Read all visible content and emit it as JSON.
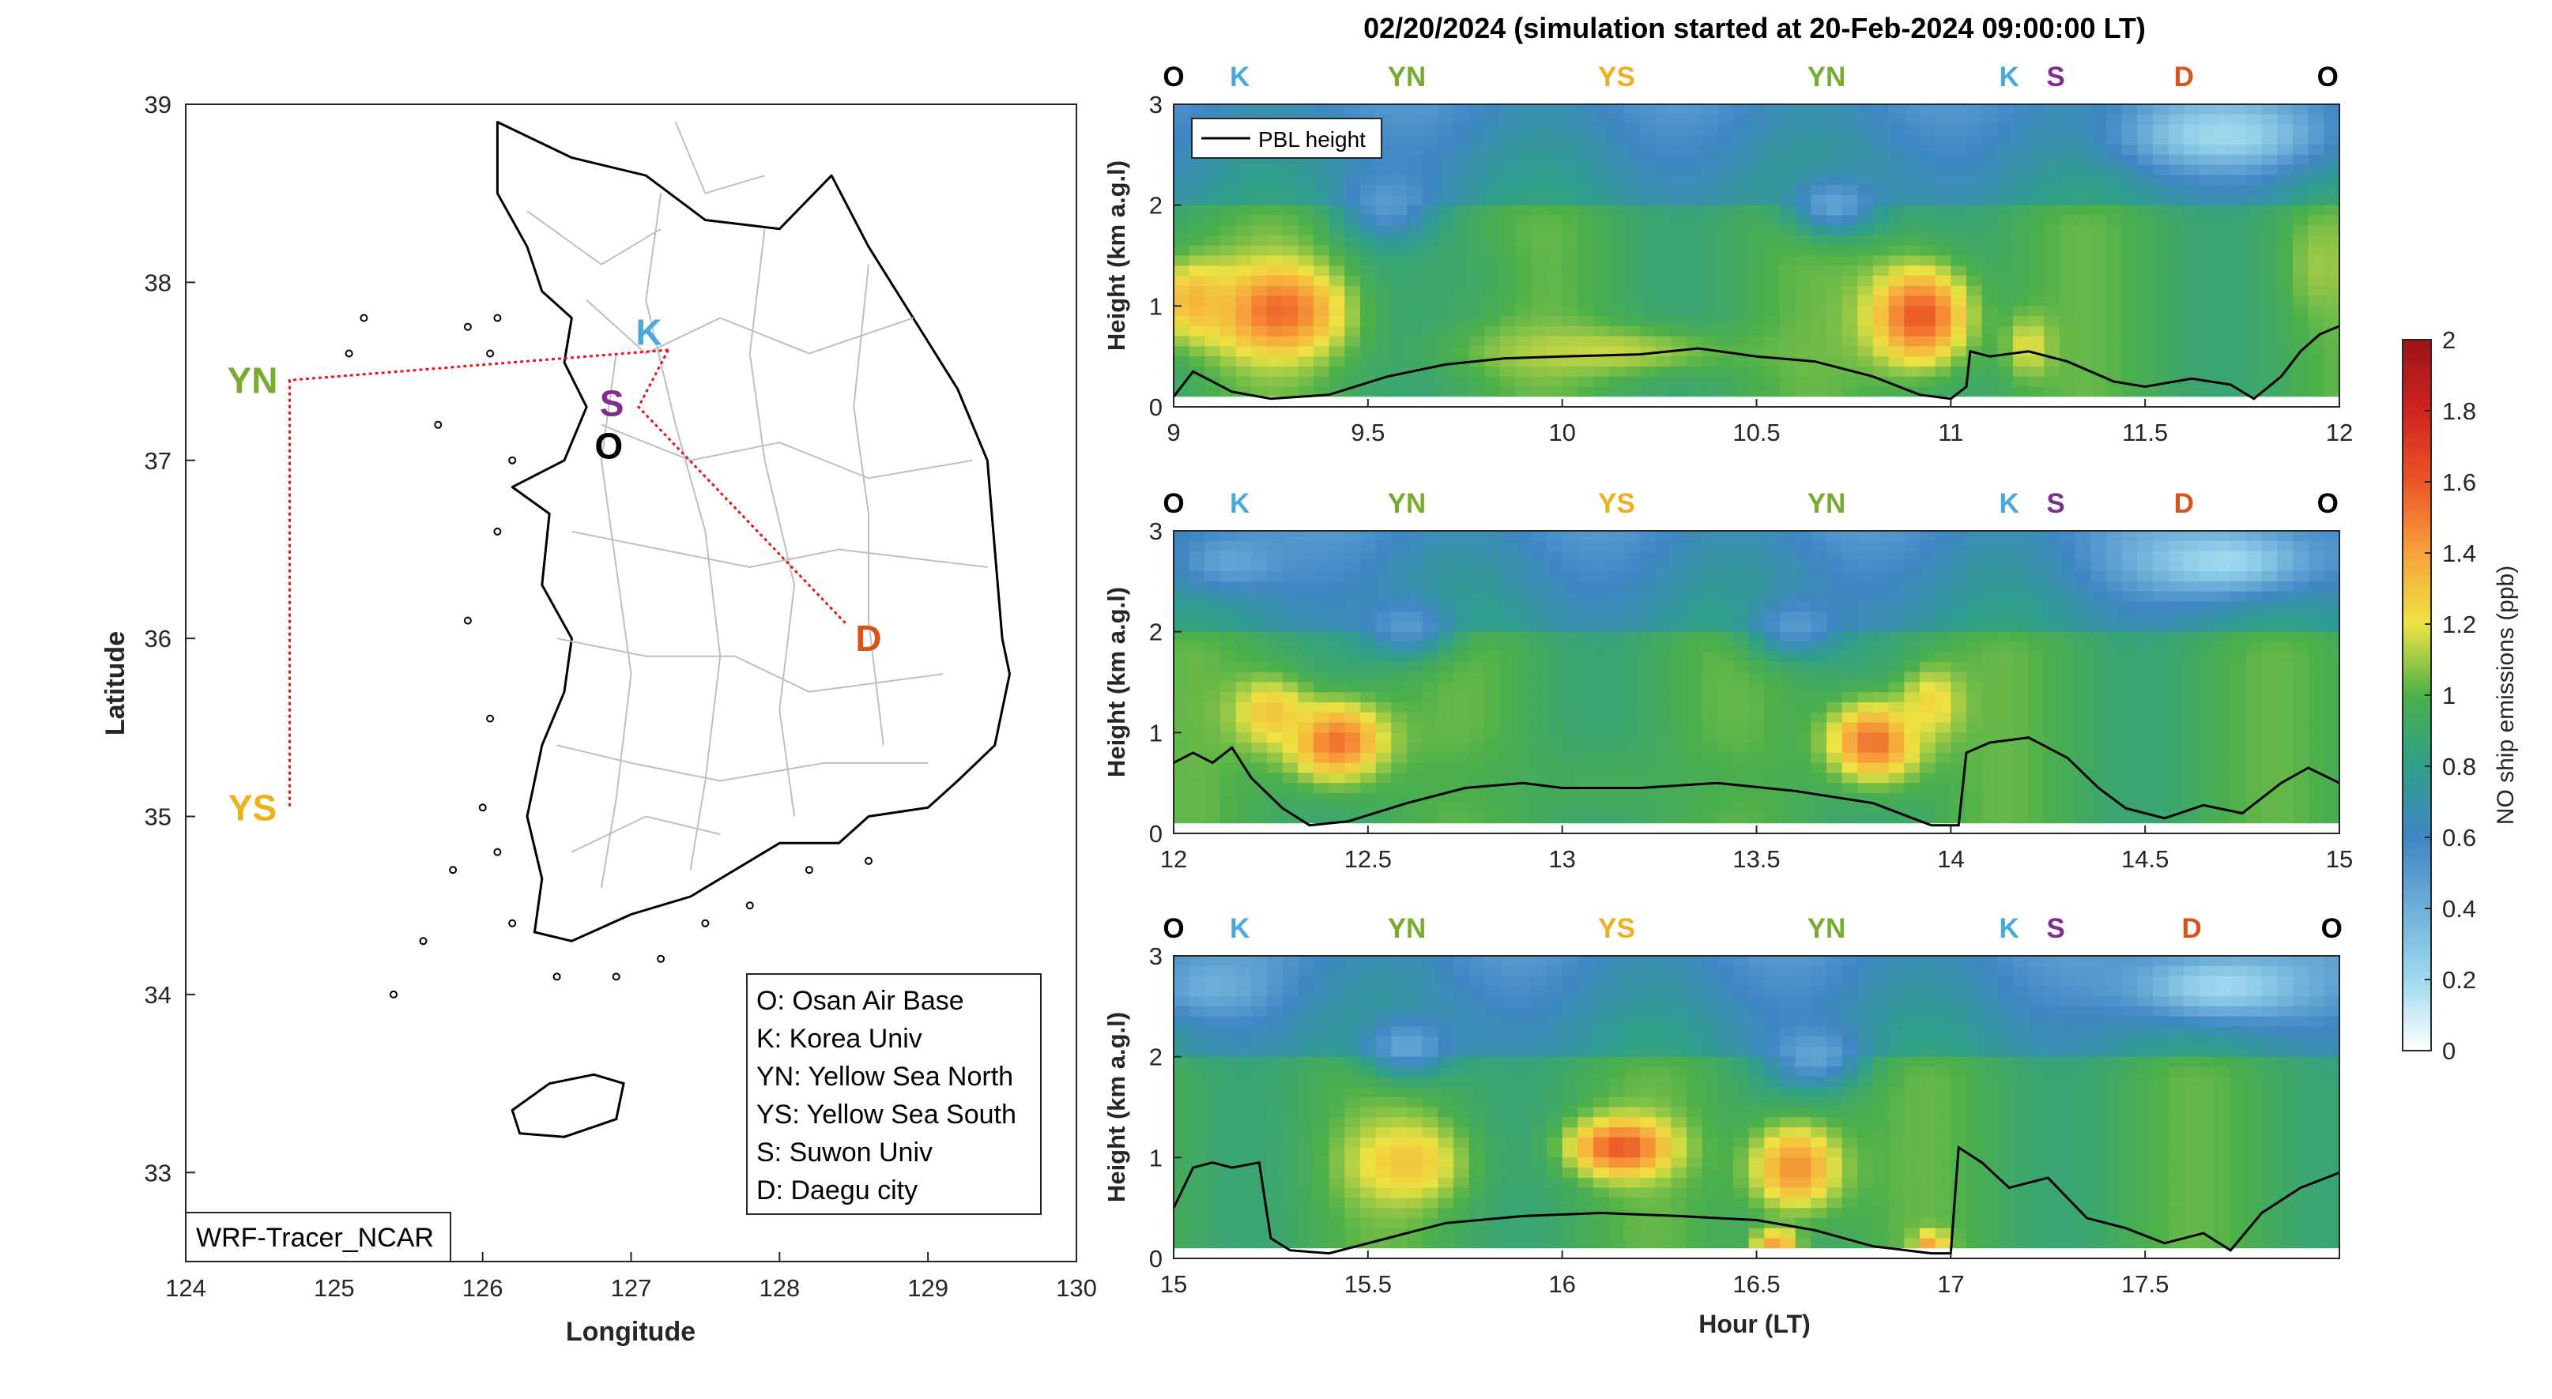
{
  "map": {
    "xlabel": "Longitude",
    "ylabel": "Latitude",
    "xlim": [
      124,
      130
    ],
    "ylim": [
      32.5,
      39
    ],
    "xticks": [
      "124",
      "125",
      "126",
      "127",
      "128",
      "129",
      "130"
    ],
    "yticks": [
      "33",
      "34",
      "35",
      "36",
      "37",
      "38",
      "39"
    ],
    "model_label": "WRF-Tracer_NCAR",
    "sites": [
      {
        "code": "O",
        "lon": 126.95,
        "lat": 37.05,
        "label_lon": 126.85,
        "label_lat": 37.08,
        "color": "#000000"
      },
      {
        "code": "K",
        "lon": 127.25,
        "lat": 37.62,
        "label_lon": 127.12,
        "label_lat": 37.72,
        "color": "#4aa8db"
      },
      {
        "code": "S",
        "lon": 127.05,
        "lat": 37.3,
        "label_lon": 126.87,
        "label_lat": 37.32,
        "color": "#7e2f8e"
      },
      {
        "code": "YN",
        "lon": 124.7,
        "lat": 37.45,
        "label_lon": 124.45,
        "label_lat": 37.45,
        "color": "#77ac30"
      },
      {
        "code": "YS",
        "lon": 124.7,
        "lat": 35.05,
        "label_lon": 124.45,
        "label_lat": 35.05,
        "color": "#edb120"
      },
      {
        "code": "D",
        "lon": 128.45,
        "lat": 36.08,
        "label_lon": 128.6,
        "label_lat": 36.0,
        "color": "#d95319"
      }
    ],
    "route": [
      {
        "lon": 127.25,
        "lat": 37.62
      },
      {
        "lon": 124.7,
        "lat": 37.45
      },
      {
        "lon": 124.7,
        "lat": 35.05
      }
    ],
    "route2": [
      {
        "lon": 127.25,
        "lat": 37.62
      },
      {
        "lon": 127.05,
        "lat": 37.3
      },
      {
        "lon": 128.45,
        "lat": 36.08
      }
    ],
    "legend": [
      "O: Osan Air Base",
      "K: Korea Univ",
      "YN: Yellow Sea North",
      "YS: Yellow Sea South",
      "S: Suwon Univ",
      "D: Daegu city"
    ]
  },
  "chart_data": {
    "type": "heatmap",
    "title": "02/20/2024 (simulation started at 20-Feb-2024 09:00:00 LT)",
    "xlabel": "Hour (LT)",
    "ylabel": "Height (km a.g.l)",
    "ylim": [
      0,
      3
    ],
    "yticks": [
      "0",
      "1",
      "2",
      "3"
    ],
    "legend_entry": "PBL height",
    "colorbar": {
      "label": "NO ship emissions (ppb)",
      "range": [
        0,
        2
      ],
      "ticks": [
        "0",
        "0.2",
        "0.4",
        "0.6",
        "0.8",
        "1",
        "1.2",
        "1.4",
        "1.6",
        "1.8",
        "2"
      ]
    },
    "panels": [
      {
        "xlim": [
          9,
          12
        ],
        "xticks": [
          "9",
          "9.5",
          "10",
          "10.5",
          "11",
          "11.5",
          "12"
        ],
        "site_labels": [
          {
            "code": "O",
            "t": 9.0,
            "color": "#000000"
          },
          {
            "code": "K",
            "t": 9.17,
            "color": "#4aa8db"
          },
          {
            "code": "YN",
            "t": 9.6,
            "color": "#77ac30"
          },
          {
            "code": "YS",
            "t": 10.14,
            "color": "#edb120"
          },
          {
            "code": "YN",
            "t": 10.68,
            "color": "#77ac30"
          },
          {
            "code": "K",
            "t": 11.15,
            "color": "#4aa8db"
          },
          {
            "code": "S",
            "t": 11.27,
            "color": "#7e2f8e"
          },
          {
            "code": "D",
            "t": 11.6,
            "color": "#d95319"
          },
          {
            "code": "O",
            "t": 11.97,
            "color": "#000000"
          }
        ],
        "pbl": [
          [
            9.0,
            0.1
          ],
          [
            9.05,
            0.35
          ],
          [
            9.1,
            0.25
          ],
          [
            9.15,
            0.15
          ],
          [
            9.25,
            0.08
          ],
          [
            9.4,
            0.12
          ],
          [
            9.55,
            0.3
          ],
          [
            9.7,
            0.42
          ],
          [
            9.85,
            0.48
          ],
          [
            10.0,
            0.5
          ],
          [
            10.2,
            0.52
          ],
          [
            10.35,
            0.58
          ],
          [
            10.5,
            0.5
          ],
          [
            10.65,
            0.45
          ],
          [
            10.8,
            0.3
          ],
          [
            10.92,
            0.12
          ],
          [
            11.0,
            0.08
          ],
          [
            11.04,
            0.2
          ],
          [
            11.05,
            0.55
          ],
          [
            11.1,
            0.5
          ],
          [
            11.2,
            0.55
          ],
          [
            11.3,
            0.45
          ],
          [
            11.42,
            0.25
          ],
          [
            11.5,
            0.2
          ],
          [
            11.62,
            0.28
          ],
          [
            11.72,
            0.22
          ],
          [
            11.78,
            0.08
          ],
          [
            11.85,
            0.3
          ],
          [
            11.9,
            0.55
          ],
          [
            11.95,
            0.72
          ],
          [
            12.0,
            0.8
          ]
        ],
        "blobs": [
          {
            "t": 9.27,
            "h": 0.95,
            "v": 1.55,
            "sx": 0.17,
            "sy": 0.45
          },
          {
            "t": 9.05,
            "h": 1.05,
            "v": 1.35,
            "sx": 0.1,
            "sy": 0.4
          },
          {
            "t": 10.92,
            "h": 0.9,
            "v": 1.6,
            "sx": 0.13,
            "sy": 0.5
          },
          {
            "t": 10.1,
            "h": 0.55,
            "v": 1.15,
            "sx": 0.35,
            "sy": 0.25
          },
          {
            "t": 9.7,
            "h": 1.3,
            "v": 0.9,
            "sx": 0.15,
            "sy": 0.35
          },
          {
            "t": 11.2,
            "h": 0.6,
            "v": 1.2,
            "sx": 0.06,
            "sy": 0.3
          },
          {
            "t": 9.55,
            "h": 2.0,
            "v": 0.5,
            "sx": 0.12,
            "sy": 0.35
          },
          {
            "t": 10.7,
            "h": 2.0,
            "v": 0.45,
            "sx": 0.12,
            "sy": 0.3
          },
          {
            "t": 11.7,
            "h": 2.7,
            "v": 0.2,
            "sx": 0.25,
            "sy": 0.35
          },
          {
            "t": 11.95,
            "h": 1.4,
            "v": 1.1,
            "sx": 0.08,
            "sy": 0.5
          }
        ]
      },
      {
        "xlim": [
          12,
          15
        ],
        "xticks": [
          "12",
          "12.5",
          "13",
          "13.5",
          "14",
          "14.5",
          "15"
        ],
        "site_labels": [
          {
            "code": "O",
            "t": 12.0,
            "color": "#000000"
          },
          {
            "code": "K",
            "t": 12.17,
            "color": "#4aa8db"
          },
          {
            "code": "YN",
            "t": 12.6,
            "color": "#77ac30"
          },
          {
            "code": "YS",
            "t": 13.14,
            "color": "#edb120"
          },
          {
            "code": "YN",
            "t": 13.68,
            "color": "#77ac30"
          },
          {
            "code": "K",
            "t": 14.15,
            "color": "#4aa8db"
          },
          {
            "code": "S",
            "t": 14.27,
            "color": "#7e2f8e"
          },
          {
            "code": "D",
            "t": 14.6,
            "color": "#d95319"
          },
          {
            "code": "O",
            "t": 14.97,
            "color": "#000000"
          }
        ],
        "pbl": [
          [
            12.0,
            0.7
          ],
          [
            12.05,
            0.8
          ],
          [
            12.1,
            0.7
          ],
          [
            12.15,
            0.85
          ],
          [
            12.2,
            0.55
          ],
          [
            12.28,
            0.25
          ],
          [
            12.35,
            0.08
          ],
          [
            12.45,
            0.12
          ],
          [
            12.6,
            0.3
          ],
          [
            12.75,
            0.45
          ],
          [
            12.9,
            0.5
          ],
          [
            13.0,
            0.45
          ],
          [
            13.2,
            0.45
          ],
          [
            13.4,
            0.5
          ],
          [
            13.6,
            0.42
          ],
          [
            13.8,
            0.3
          ],
          [
            13.95,
            0.08
          ],
          [
            14.02,
            0.08
          ],
          [
            14.04,
            0.8
          ],
          [
            14.1,
            0.9
          ],
          [
            14.2,
            0.95
          ],
          [
            14.3,
            0.75
          ],
          [
            14.38,
            0.45
          ],
          [
            14.45,
            0.25
          ],
          [
            14.55,
            0.15
          ],
          [
            14.65,
            0.28
          ],
          [
            14.75,
            0.2
          ],
          [
            14.85,
            0.5
          ],
          [
            14.92,
            0.65
          ],
          [
            15.0,
            0.5
          ]
        ],
        "blobs": [
          {
            "t": 12.42,
            "h": 0.9,
            "v": 1.55,
            "sx": 0.13,
            "sy": 0.4
          },
          {
            "t": 12.25,
            "h": 1.2,
            "v": 1.3,
            "sx": 0.1,
            "sy": 0.35
          },
          {
            "t": 13.8,
            "h": 0.9,
            "v": 1.55,
            "sx": 0.12,
            "sy": 0.4
          },
          {
            "t": 13.95,
            "h": 1.3,
            "v": 1.25,
            "sx": 0.08,
            "sy": 0.35
          },
          {
            "t": 13.1,
            "h": 0.5,
            "v": 0.95,
            "sx": 0.45,
            "sy": 0.35
          },
          {
            "t": 12.6,
            "h": 2.05,
            "v": 0.5,
            "sx": 0.12,
            "sy": 0.3
          },
          {
            "t": 13.6,
            "h": 2.05,
            "v": 0.5,
            "sx": 0.12,
            "sy": 0.3
          },
          {
            "t": 14.7,
            "h": 2.7,
            "v": 0.2,
            "sx": 0.25,
            "sy": 0.35
          },
          {
            "t": 12.15,
            "h": 2.7,
            "v": 0.45,
            "sx": 0.15,
            "sy": 0.3
          }
        ]
      },
      {
        "xlim": [
          15,
          18
        ],
        "xticks": [
          "15",
          "15.5",
          "16",
          "16.5",
          "17",
          "17.5"
        ],
        "site_labels": [
          {
            "code": "O",
            "t": 15.0,
            "color": "#000000"
          },
          {
            "code": "K",
            "t": 15.17,
            "color": "#4aa8db"
          },
          {
            "code": "YN",
            "t": 15.6,
            "color": "#77ac30"
          },
          {
            "code": "YS",
            "t": 16.14,
            "color": "#edb120"
          },
          {
            "code": "YN",
            "t": 16.68,
            "color": "#77ac30"
          },
          {
            "code": "K",
            "t": 17.15,
            "color": "#4aa8db"
          },
          {
            "code": "S",
            "t": 17.27,
            "color": "#7e2f8e"
          },
          {
            "code": "D",
            "t": 17.62,
            "color": "#d95319"
          },
          {
            "code": "O",
            "t": 17.98,
            "color": "#000000"
          }
        ],
        "pbl": [
          [
            15.0,
            0.5
          ],
          [
            15.05,
            0.9
          ],
          [
            15.1,
            0.95
          ],
          [
            15.15,
            0.9
          ],
          [
            15.22,
            0.95
          ],
          [
            15.25,
            0.2
          ],
          [
            15.3,
            0.08
          ],
          [
            15.4,
            0.05
          ],
          [
            15.55,
            0.2
          ],
          [
            15.7,
            0.35
          ],
          [
            15.9,
            0.42
          ],
          [
            16.1,
            0.45
          ],
          [
            16.3,
            0.42
          ],
          [
            16.5,
            0.38
          ],
          [
            16.65,
            0.28
          ],
          [
            16.8,
            0.12
          ],
          [
            16.95,
            0.05
          ],
          [
            17.0,
            0.05
          ],
          [
            17.02,
            1.1
          ],
          [
            17.08,
            0.95
          ],
          [
            17.15,
            0.7
          ],
          [
            17.25,
            0.8
          ],
          [
            17.35,
            0.4
          ],
          [
            17.45,
            0.3
          ],
          [
            17.55,
            0.15
          ],
          [
            17.65,
            0.25
          ],
          [
            17.72,
            0.08
          ],
          [
            17.8,
            0.45
          ],
          [
            17.9,
            0.7
          ],
          [
            18.0,
            0.85
          ]
        ],
        "blobs": [
          {
            "t": 16.15,
            "h": 1.1,
            "v": 1.6,
            "sx": 0.13,
            "sy": 0.28
          },
          {
            "t": 15.6,
            "h": 0.95,
            "v": 1.3,
            "sx": 0.15,
            "sy": 0.4
          },
          {
            "t": 16.6,
            "h": 0.9,
            "v": 1.45,
            "sx": 0.12,
            "sy": 0.45
          },
          {
            "t": 16.55,
            "h": 0.15,
            "v": 1.4,
            "sx": 0.06,
            "sy": 0.15
          },
          {
            "t": 16.95,
            "h": 0.15,
            "v": 1.4,
            "sx": 0.04,
            "sy": 0.12
          },
          {
            "t": 15.6,
            "h": 2.1,
            "v": 0.45,
            "sx": 0.12,
            "sy": 0.3
          },
          {
            "t": 16.65,
            "h": 2.0,
            "v": 0.45,
            "sx": 0.12,
            "sy": 0.3
          },
          {
            "t": 15.1,
            "h": 2.7,
            "v": 0.4,
            "sx": 0.15,
            "sy": 0.3
          },
          {
            "t": 17.7,
            "h": 2.7,
            "v": 0.2,
            "sx": 0.25,
            "sy": 0.35
          }
        ]
      }
    ]
  }
}
